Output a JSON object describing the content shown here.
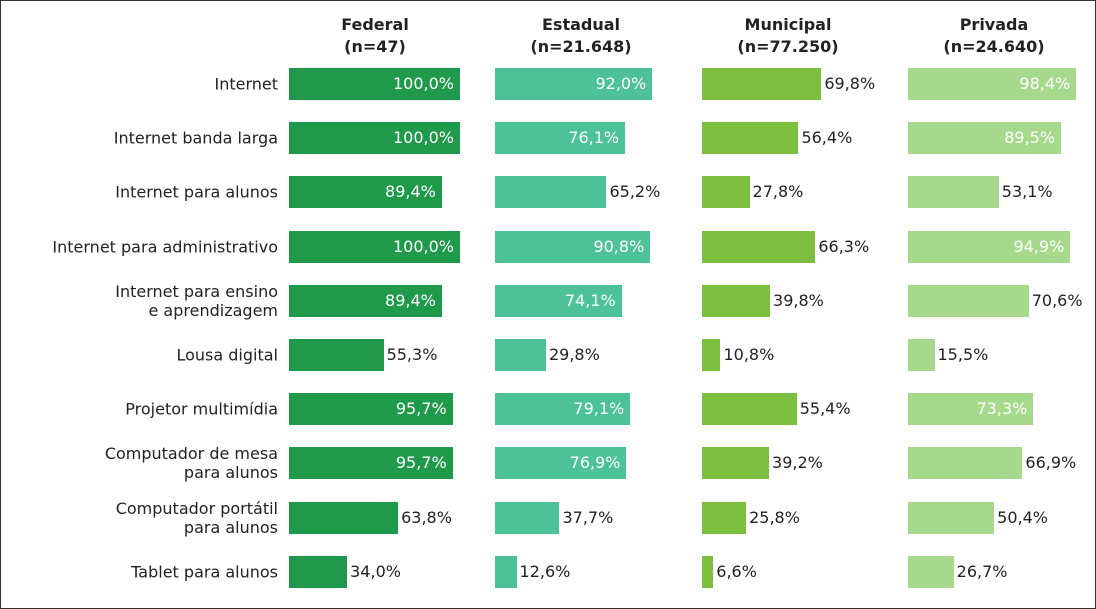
{
  "chart_data": {
    "type": "bar",
    "orientation": "horizontal",
    "xlim": [
      0,
      100
    ],
    "categories": [
      "Internet",
      "Internet banda larga",
      "Internet para alunos",
      "Internet para administrativo",
      "Internet para ensino\ne aprendizagem",
      "Lousa digital",
      "Projetor multimídia",
      "Computador de mesa\npara alunos",
      "Computador portátil\npara alunos",
      "Tablet para alunos"
    ],
    "series": [
      {
        "name": "Federal",
        "note": "(n=47)",
        "color": "#1f9a4b",
        "values": [
          100.0,
          100.0,
          89.4,
          100.0,
          89.4,
          55.3,
          95.7,
          95.7,
          63.8,
          34.0
        ],
        "value_labels": [
          "100,0%",
          "100,0%",
          "89,4%",
          "100,0%",
          "89,4%",
          "55,3%",
          "95,7%",
          "95,7%",
          "63,8%",
          "34,0%"
        ]
      },
      {
        "name": "Estadual",
        "note": "(n=21.648)",
        "color": "#4dc197",
        "values": [
          92.0,
          76.1,
          65.2,
          90.8,
          74.1,
          29.8,
          79.1,
          76.9,
          37.7,
          12.6
        ],
        "value_labels": [
          "92,0%",
          "76,1%",
          "65,2%",
          "90,8%",
          "74,1%",
          "29,8%",
          "79,1%",
          "76,9%",
          "37,7%",
          "12,6%"
        ]
      },
      {
        "name": "Municipal",
        "note": "(n=77.250)",
        "color": "#7cbf3e",
        "values": [
          69.8,
          56.4,
          27.8,
          66.3,
          39.8,
          10.8,
          55.4,
          39.2,
          25.8,
          6.6
        ],
        "value_labels": [
          "69,8%",
          "56,4%",
          "27,8%",
          "66,3%",
          "39,8%",
          "10,8%",
          "55,4%",
          "39,2%",
          "25,8%",
          "6,6%"
        ]
      },
      {
        "name": "Privada",
        "note": "(n=24.640)",
        "color": "#a7d98c",
        "values": [
          98.4,
          89.5,
          53.1,
          94.9,
          70.6,
          15.5,
          73.3,
          66.9,
          50.4,
          26.7
        ],
        "value_labels": [
          "98,4%",
          "89,5%",
          "53,1%",
          "94,9%",
          "70,6%",
          "15,5%",
          "73,3%",
          "66,9%",
          "50,4%",
          "26,7%"
        ]
      }
    ]
  }
}
